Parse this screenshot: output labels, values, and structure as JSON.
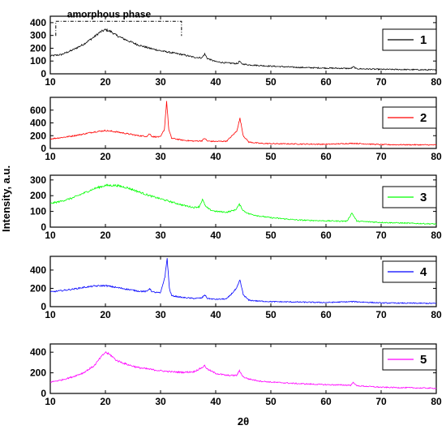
{
  "chart_data": {
    "type": "line",
    "xlabel": "2θ",
    "ylabel": "Intensity, a.u.",
    "xlim": [
      10,
      80
    ],
    "xticks": [
      10,
      20,
      30,
      40,
      50,
      60,
      70,
      80
    ],
    "grid": false,
    "legend_position": "top-right",
    "panels": [
      {
        "series_name": "1",
        "color": "#000000",
        "ylim": [
          0,
          450
        ],
        "yticks": [
          0,
          100,
          200,
          300,
          400
        ],
        "annotation": {
          "text": "amorphous phase",
          "x_range": [
            11,
            33.8
          ],
          "y": 410
        },
        "x": [
          10,
          12,
          14,
          16,
          18,
          19,
          20,
          21,
          22,
          24,
          26,
          28,
          30,
          32,
          34,
          36,
          37.5,
          38,
          38.5,
          40,
          42,
          44,
          44.3,
          44.7,
          46,
          48,
          50,
          55,
          60,
          64.5,
          65,
          65.5,
          70,
          75,
          80
        ],
        "y": [
          140,
          150,
          185,
          230,
          290,
          325,
          345,
          330,
          300,
          260,
          225,
          200,
          180,
          165,
          150,
          130,
          125,
          155,
          120,
          95,
          85,
          80,
          100,
          78,
          70,
          65,
          60,
          50,
          45,
          42,
          55,
          40,
          35,
          33,
          30
        ]
      },
      {
        "series_name": "2",
        "color": "#ff0000",
        "ylim": [
          0,
          800
        ],
        "yticks": [
          0,
          200,
          400,
          600
        ],
        "x": [
          10,
          12,
          14,
          16,
          18,
          20,
          22,
          24,
          26,
          27.5,
          28,
          28.5,
          30,
          30.7,
          31.1,
          31.5,
          32,
          34,
          36,
          37.5,
          38,
          38.5,
          40,
          42,
          43.8,
          44.4,
          45,
          46,
          48,
          50,
          55,
          60,
          65,
          70,
          75,
          80
        ],
        "y": [
          150,
          170,
          195,
          225,
          260,
          280,
          260,
          230,
          200,
          190,
          230,
          185,
          180,
          300,
          740,
          290,
          160,
          130,
          115,
          120,
          160,
          115,
          110,
          115,
          270,
          470,
          200,
          100,
          80,
          75,
          70,
          65,
          80,
          60,
          58,
          55
        ]
      },
      {
        "series_name": "3",
        "color": "#00ff00",
        "ylim": [
          0,
          330
        ],
        "yticks": [
          0,
          100,
          200,
          300
        ],
        "x": [
          10,
          12,
          14,
          16,
          18,
          20,
          22,
          24,
          26,
          28,
          30,
          32,
          34,
          36,
          37,
          37.6,
          38.2,
          39,
          40,
          42,
          43.6,
          44.3,
          45,
          46,
          48,
          50,
          55,
          60,
          63.8,
          64.7,
          65.6,
          70,
          75,
          78,
          80
        ],
        "y": [
          150,
          165,
          185,
          215,
          245,
          265,
          265,
          250,
          225,
          200,
          180,
          160,
          140,
          125,
          130,
          175,
          130,
          110,
          100,
          95,
          110,
          145,
          105,
          85,
          70,
          60,
          45,
          40,
          38,
          90,
          38,
          30,
          25,
          22,
          20
        ]
      },
      {
        "series_name": "4",
        "color": "#0000ff",
        "ylim": [
          0,
          550
        ],
        "yticks": [
          0,
          200,
          400
        ],
        "x": [
          10,
          12,
          14,
          16,
          18,
          20,
          22,
          24,
          26,
          27.5,
          28,
          28.5,
          30,
          30.8,
          31.2,
          31.6,
          32,
          34,
          36,
          37.5,
          38,
          38.5,
          40,
          42,
          43.8,
          44.4,
          45,
          46,
          48,
          50,
          55,
          60,
          65,
          70,
          75,
          80
        ],
        "y": [
          160,
          175,
          190,
          210,
          225,
          230,
          210,
          190,
          170,
          165,
          200,
          160,
          150,
          330,
          530,
          200,
          120,
          100,
          90,
          95,
          130,
          90,
          80,
          85,
          200,
          290,
          130,
          70,
          60,
          55,
          50,
          45,
          55,
          40,
          38,
          35
        ]
      },
      {
        "series_name": "5",
        "color": "#ff00ff",
        "ylim": [
          0,
          480
        ],
        "yticks": [
          0,
          200,
          400
        ],
        "x": [
          10,
          12,
          14,
          16,
          18,
          19,
          20,
          21,
          22,
          24,
          26,
          28,
          30,
          32,
          34,
          36,
          37.5,
          38,
          38.5,
          40,
          42,
          43.8,
          44.3,
          45,
          46,
          48,
          50,
          55,
          60,
          64.5,
          65,
          65.5,
          70,
          75,
          80
        ],
        "y": [
          110,
          130,
          160,
          200,
          270,
          340,
          400,
          370,
          320,
          280,
          250,
          235,
          220,
          210,
          205,
          210,
          250,
          270,
          235,
          195,
          175,
          175,
          220,
          160,
          140,
          120,
          110,
          95,
          85,
          80,
          110,
          75,
          60,
          55,
          50
        ]
      }
    ]
  }
}
